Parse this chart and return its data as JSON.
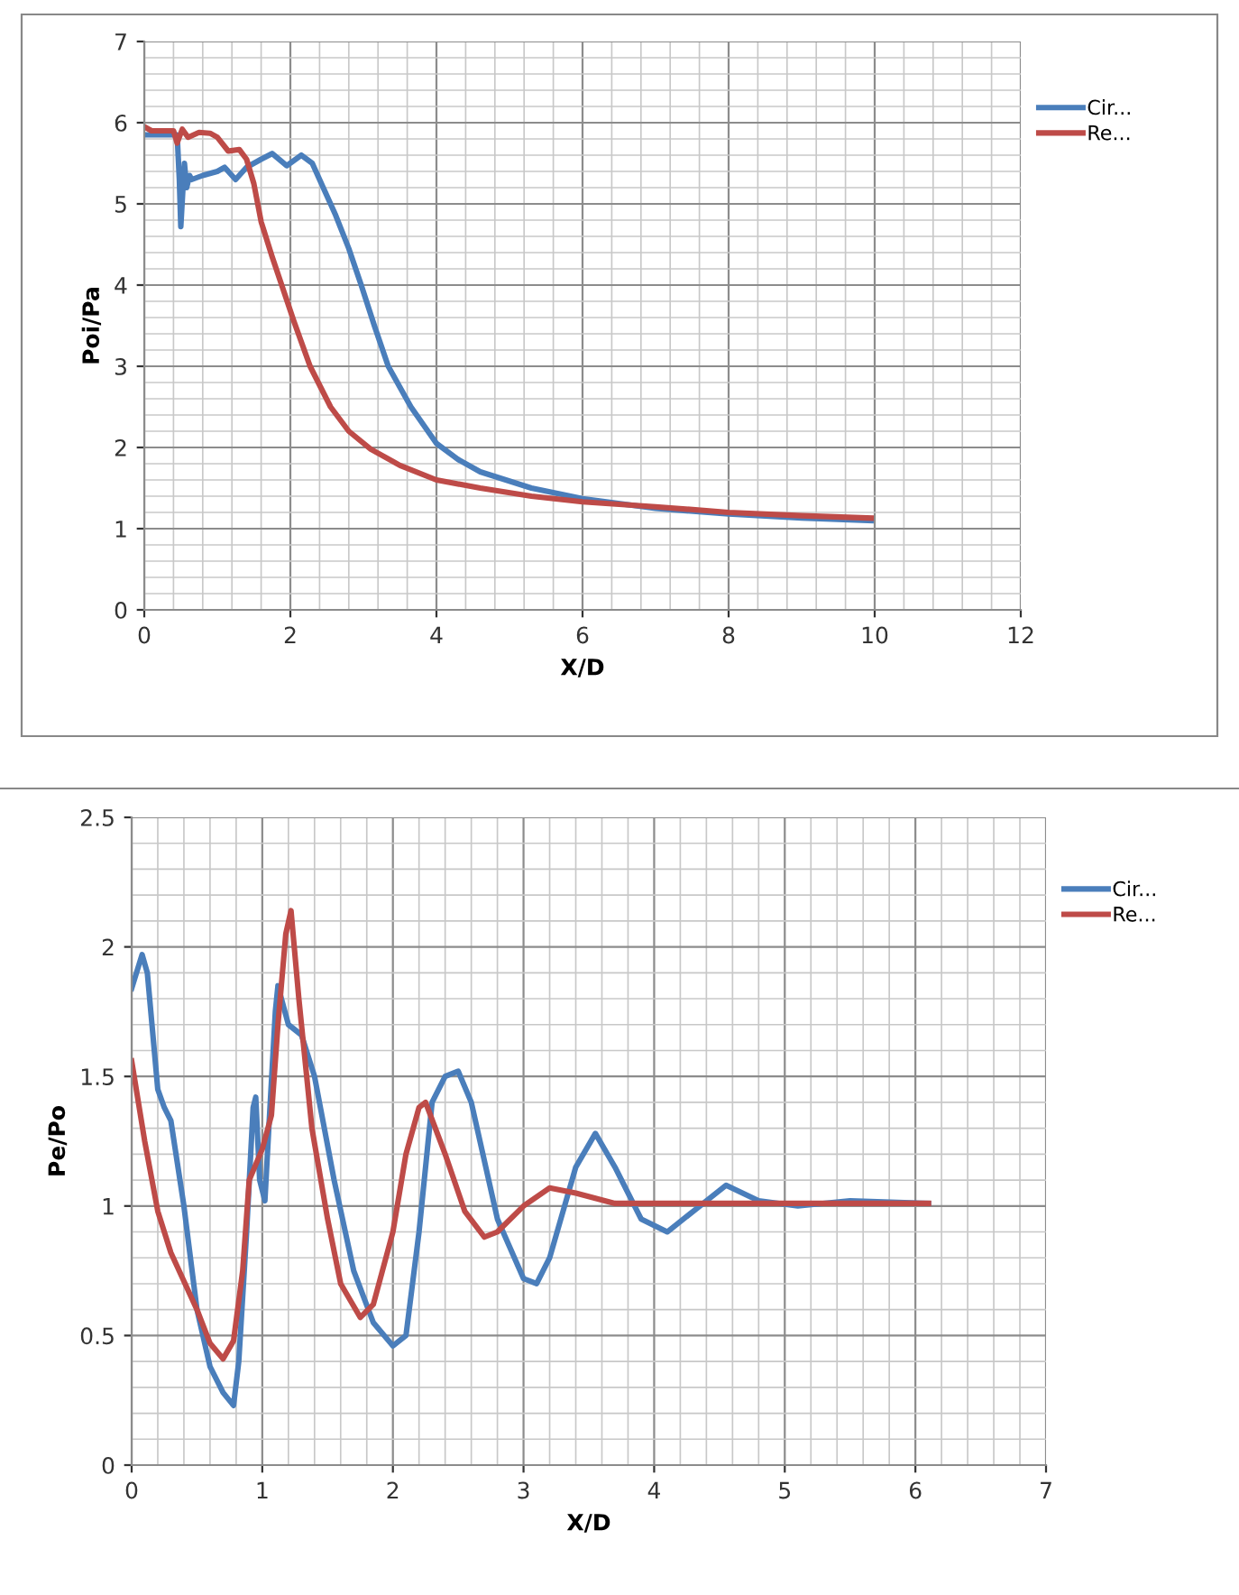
{
  "chart_data": [
    {
      "type": "line",
      "xlabel": "X/D",
      "ylabel": "Poi/Pa",
      "xlim": [
        0,
        12
      ],
      "xticks": [
        0,
        2,
        4,
        6,
        8,
        10,
        12
      ],
      "ylim": [
        0,
        7
      ],
      "yticks": [
        0,
        1,
        2,
        3,
        4,
        5,
        6,
        7
      ],
      "grid": true,
      "legend": "top right",
      "marker": "none",
      "line_style": "solid",
      "series": [
        {
          "name": "Cir...",
          "color": "#4a7ebb",
          "x": [
            0,
            0.1,
            0.2,
            0.3,
            0.45,
            0.48,
            0.5,
            0.53,
            0.55,
            0.58,
            0.62,
            0.65,
            0.8,
            1.0,
            1.1,
            1.2,
            1.25,
            1.4,
            1.6,
            1.75,
            1.95,
            2.15,
            2.3,
            2.45,
            2.62,
            2.8,
            2.97,
            3.15,
            3.34,
            3.65,
            4.0,
            4.3,
            4.6,
            5.3,
            6.0,
            7.0,
            8.0,
            9.0,
            9.95
          ],
          "values": [
            5.85,
            5.85,
            5.85,
            5.85,
            5.85,
            5.3,
            4.72,
            5.2,
            5.5,
            5.2,
            5.35,
            5.3,
            5.35,
            5.4,
            5.45,
            5.35,
            5.3,
            5.45,
            5.55,
            5.62,
            5.47,
            5.6,
            5.5,
            5.2,
            4.86,
            4.45,
            4.0,
            3.5,
            3.0,
            2.5,
            2.05,
            1.85,
            1.7,
            1.5,
            1.37,
            1.25,
            1.18,
            1.13,
            1.1
          ]
        },
        {
          "name": "Re...",
          "color": "#be4b48",
          "x": [
            0,
            0.1,
            0.2,
            0.4,
            0.45,
            0.52,
            0.6,
            0.75,
            0.9,
            1.0,
            1.15,
            1.3,
            1.4,
            1.5,
            1.6,
            1.75,
            1.9,
            2.05,
            2.27,
            2.55,
            2.8,
            3.1,
            3.5,
            4.0,
            4.6,
            5.3,
            6.0,
            7.0,
            8.0,
            9.0,
            9.95
          ],
          "values": [
            5.95,
            5.9,
            5.9,
            5.9,
            5.75,
            5.92,
            5.82,
            5.88,
            5.87,
            5.82,
            5.65,
            5.67,
            5.55,
            5.25,
            4.78,
            4.35,
            3.95,
            3.55,
            3.0,
            2.5,
            2.2,
            1.98,
            1.78,
            1.6,
            1.5,
            1.4,
            1.33,
            1.27,
            1.2,
            1.16,
            1.13
          ]
        }
      ]
    },
    {
      "type": "line",
      "xlabel": "X/D",
      "ylabel": "Pe/Po",
      "xlim": [
        0,
        7
      ],
      "xticks": [
        0,
        1,
        2,
        3,
        4,
        5,
        6,
        7
      ],
      "ylim": [
        0,
        2.5
      ],
      "yticks": [
        0,
        0.5,
        1,
        1.5,
        2,
        2.5
      ],
      "grid": true,
      "legend": "top right",
      "marker": "none",
      "line_style": "solid",
      "series": [
        {
          "name": "Cir...",
          "color": "#4a7ebb",
          "x": [
            0,
            0.08,
            0.12,
            0.2,
            0.25,
            0.3,
            0.4,
            0.5,
            0.6,
            0.7,
            0.78,
            0.82,
            0.88,
            0.93,
            0.95,
            0.98,
            1.02,
            1.05,
            1.1,
            1.12,
            1.2,
            1.3,
            1.4,
            1.55,
            1.7,
            1.85,
            2.0,
            2.1,
            2.2,
            2.3,
            2.4,
            2.5,
            2.6,
            2.8,
            3.0,
            3.1,
            3.2,
            3.4,
            3.55,
            3.7,
            3.9,
            4.1,
            4.3,
            4.55,
            4.8,
            5.1,
            5.5,
            6.1
          ],
          "values": [
            1.84,
            1.97,
            1.9,
            1.45,
            1.38,
            1.33,
            1.0,
            0.6,
            0.38,
            0.28,
            0.23,
            0.4,
            0.9,
            1.38,
            1.42,
            1.1,
            1.02,
            1.3,
            1.75,
            1.85,
            1.7,
            1.66,
            1.5,
            1.1,
            0.75,
            0.55,
            0.46,
            0.5,
            0.9,
            1.4,
            1.5,
            1.52,
            1.4,
            0.95,
            0.72,
            0.7,
            0.8,
            1.15,
            1.28,
            1.15,
            0.95,
            0.9,
            0.98,
            1.08,
            1.02,
            1.0,
            1.02,
            1.01
          ]
        },
        {
          "name": "Re...",
          "color": "#be4b48",
          "x": [
            0,
            0.1,
            0.2,
            0.3,
            0.5,
            0.6,
            0.7,
            0.78,
            0.85,
            0.9,
            1.0,
            1.07,
            1.12,
            1.18,
            1.22,
            1.28,
            1.38,
            1.5,
            1.6,
            1.75,
            1.85,
            2.0,
            2.1,
            2.2,
            2.25,
            2.4,
            2.55,
            2.7,
            2.8,
            3.0,
            3.2,
            3.4,
            3.7,
            4.0,
            5.0,
            6.1
          ],
          "values": [
            1.56,
            1.25,
            0.98,
            0.82,
            0.6,
            0.47,
            0.41,
            0.48,
            0.75,
            1.1,
            1.22,
            1.35,
            1.7,
            2.05,
            2.14,
            1.8,
            1.3,
            0.95,
            0.7,
            0.57,
            0.62,
            0.9,
            1.2,
            1.38,
            1.4,
            1.2,
            0.98,
            0.88,
            0.9,
            1.0,
            1.07,
            1.05,
            1.01,
            1.01,
            1.01,
            1.01
          ]
        }
      ]
    }
  ]
}
